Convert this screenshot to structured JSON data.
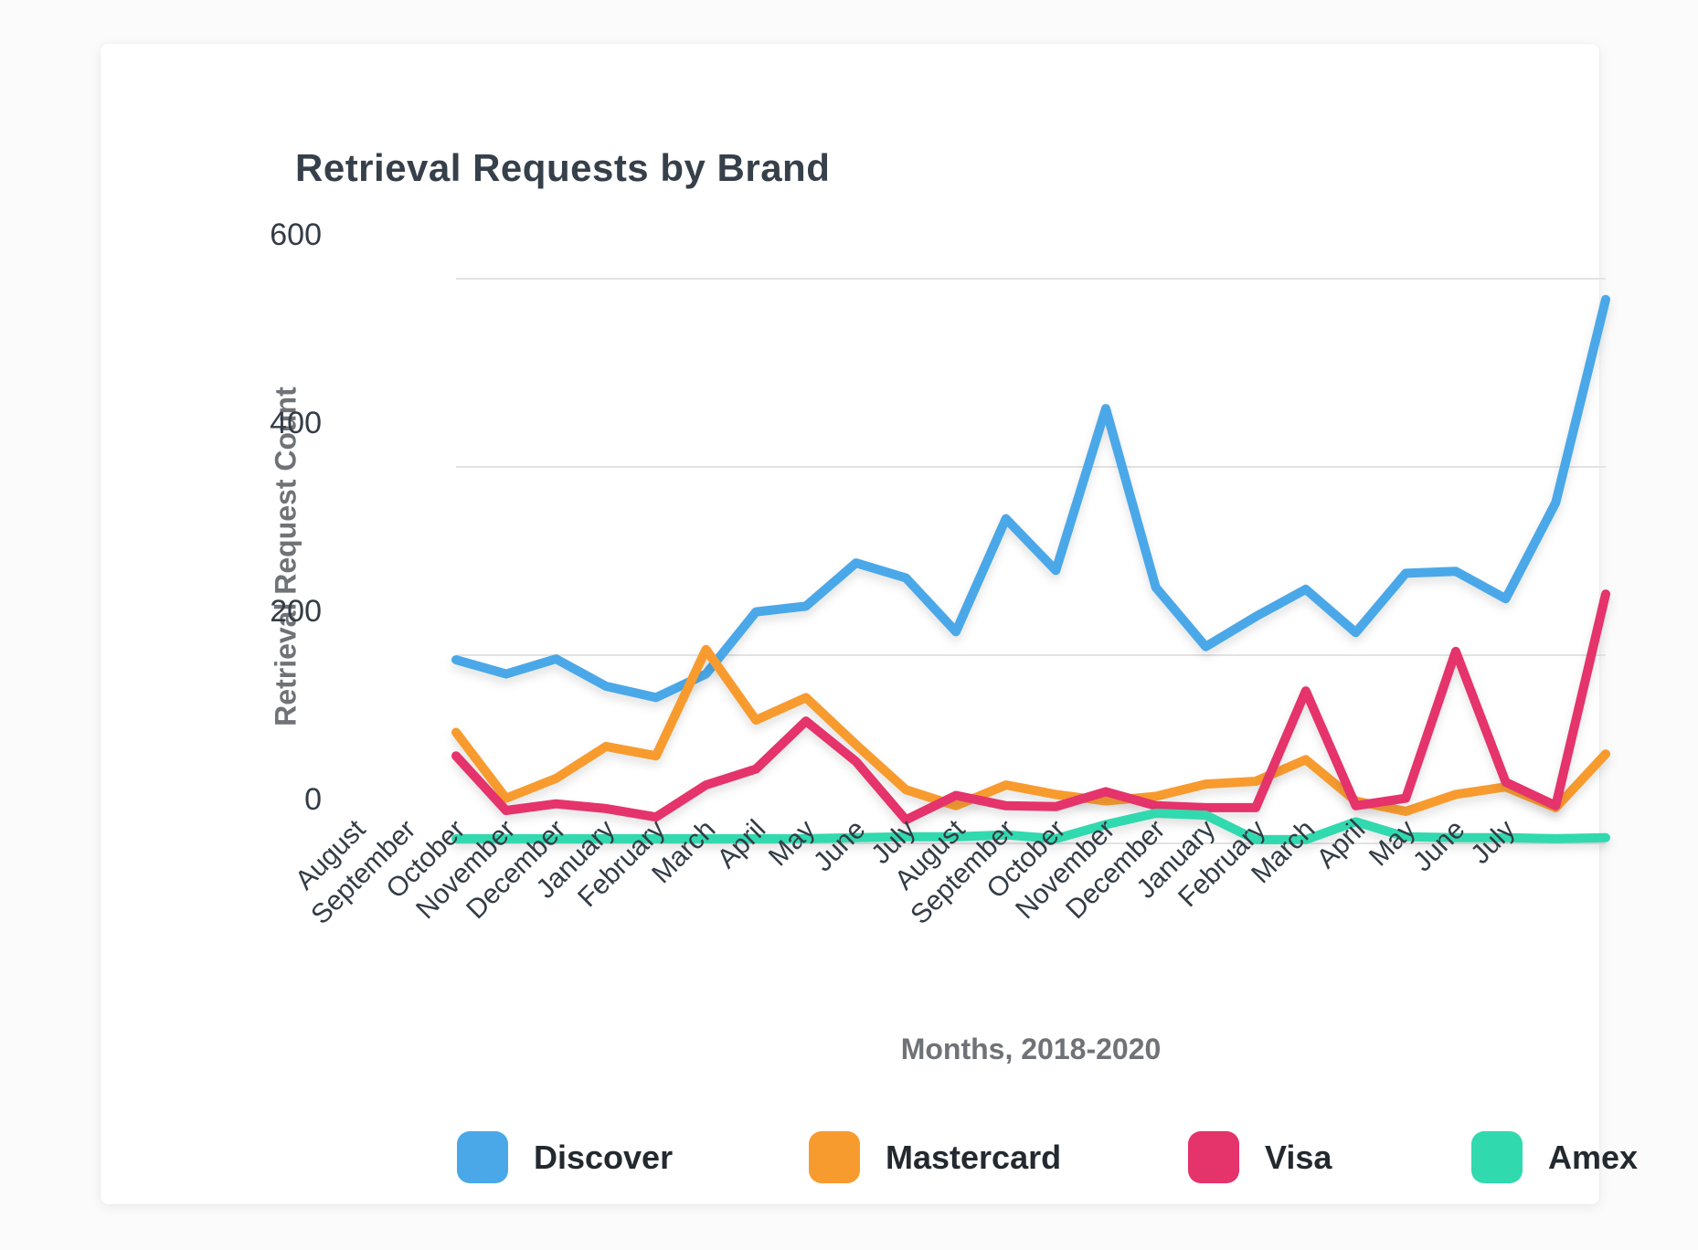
{
  "page": {
    "title": "Retrieval Requests by Brand"
  },
  "chart_data": {
    "type": "line",
    "title": "Retrieval Requests by Brand",
    "xlabel": "Months, 2018-2020",
    "ylabel": "Retrieval Request Count",
    "x_categories": [
      "August",
      "September",
      "October",
      "November",
      "December",
      "January",
      "February",
      "March",
      "April",
      "May",
      "June",
      "July",
      "August",
      "September",
      "October",
      "November",
      "December",
      "January",
      "February",
      "March",
      "April",
      "May",
      "June",
      "July"
    ],
    "y_ticks": [
      0,
      200,
      400,
      600
    ],
    "ylim": [
      0,
      600
    ],
    "grid": "horizontal-only",
    "gridline_color": "#e3e3e3",
    "legend_position": "bottom",
    "series": [
      {
        "name": "Discover",
        "color": "#4aa8e8",
        "values": [
          195,
          180,
          196,
          167,
          155,
          180,
          246,
          252,
          298,
          282,
          225,
          345,
          290,
          462,
          272,
          209,
          241,
          270,
          224,
          287,
          289,
          260,
          362,
          578
        ]
      },
      {
        "name": "Mastercard",
        "color": "#f89b2e",
        "values": [
          118,
          48,
          69,
          103,
          93,
          206,
          131,
          155,
          105,
          57,
          40,
          62,
          52,
          45,
          50,
          63,
          66,
          89,
          45,
          34,
          52,
          60,
          38,
          95
        ]
      },
      {
        "name": "Visa",
        "color": "#e5336b",
        "values": [
          93,
          35,
          42,
          37,
          28,
          62,
          79,
          130,
          87,
          25,
          51,
          40,
          39,
          55,
          40,
          38,
          38,
          162,
          40,
          48,
          204,
          65,
          40,
          265
        ]
      },
      {
        "name": "Amex",
        "color": "#31d9ae",
        "values": [
          5,
          5,
          5,
          5,
          5,
          5,
          5,
          5,
          6,
          7,
          7,
          9,
          5,
          20,
          32,
          30,
          4,
          4,
          23,
          7,
          6,
          6,
          5,
          6
        ]
      }
    ]
  }
}
